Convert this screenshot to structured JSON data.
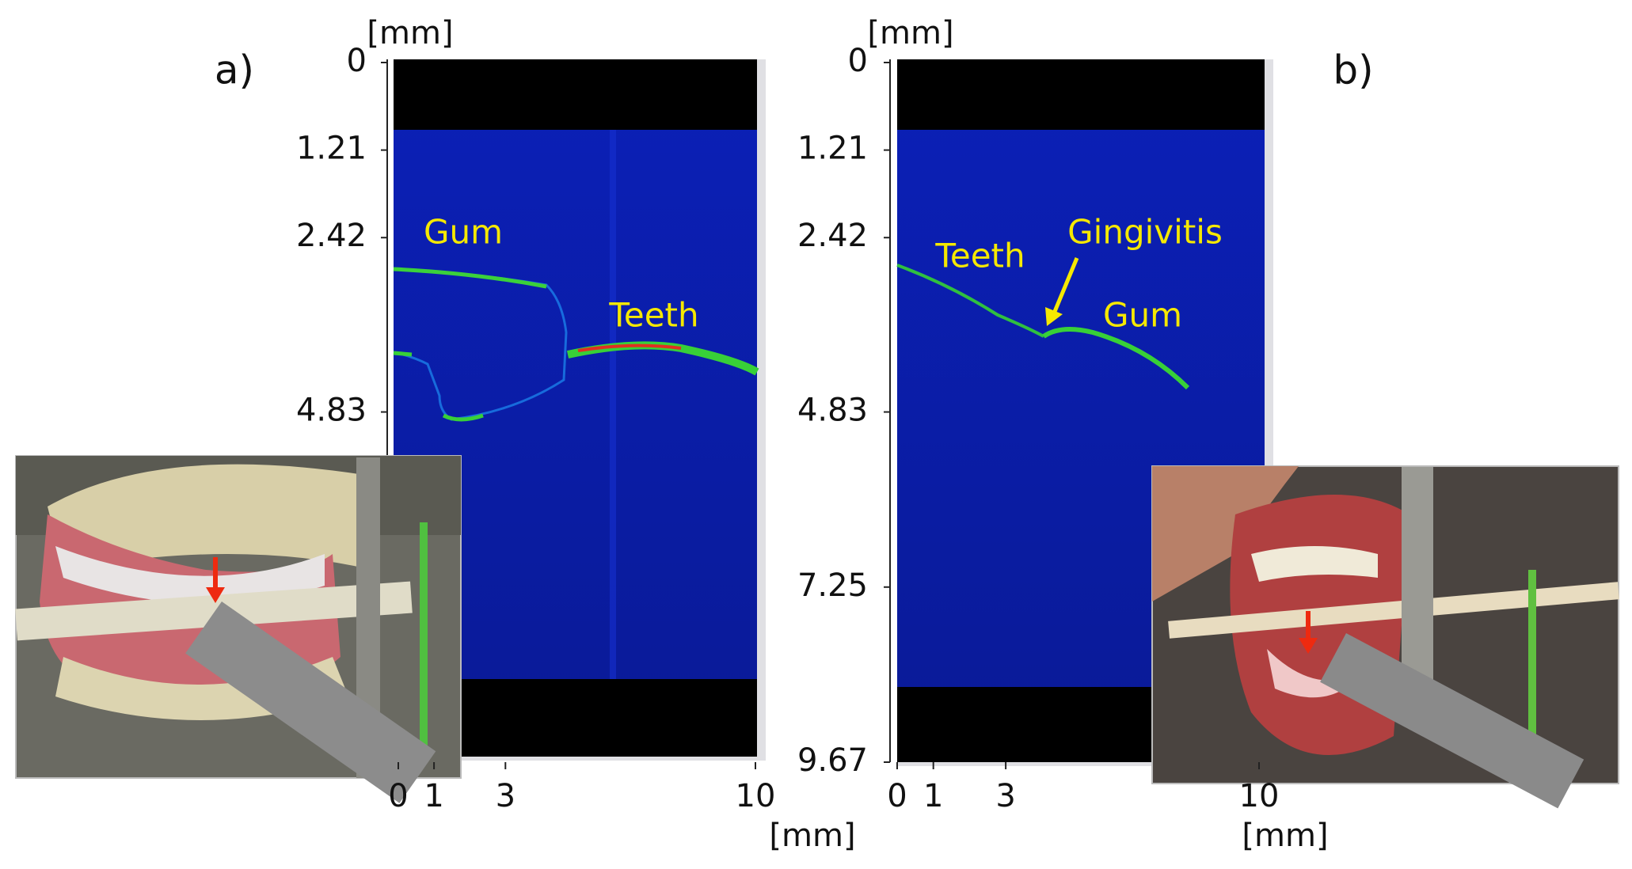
{
  "panels": [
    {
      "label": "a)",
      "y_unit": "[mm]",
      "x_unit": "[mm]",
      "yticks": [
        0,
        1.21,
        2.42,
        4.83
      ],
      "xticks": [
        0,
        1,
        3,
        10
      ],
      "annotations": [
        "Gum",
        "Teeth"
      ]
    },
    {
      "label": "b)",
      "y_unit": "[mm]",
      "x_unit": "[mm]",
      "yticks": [
        0,
        1.21,
        2.42,
        4.83,
        7.25,
        9.67
      ],
      "xticks": [
        0,
        1,
        3,
        10
      ],
      "annotations": [
        "Teeth",
        "Gingivitis",
        "Gum"
      ]
    }
  ]
}
